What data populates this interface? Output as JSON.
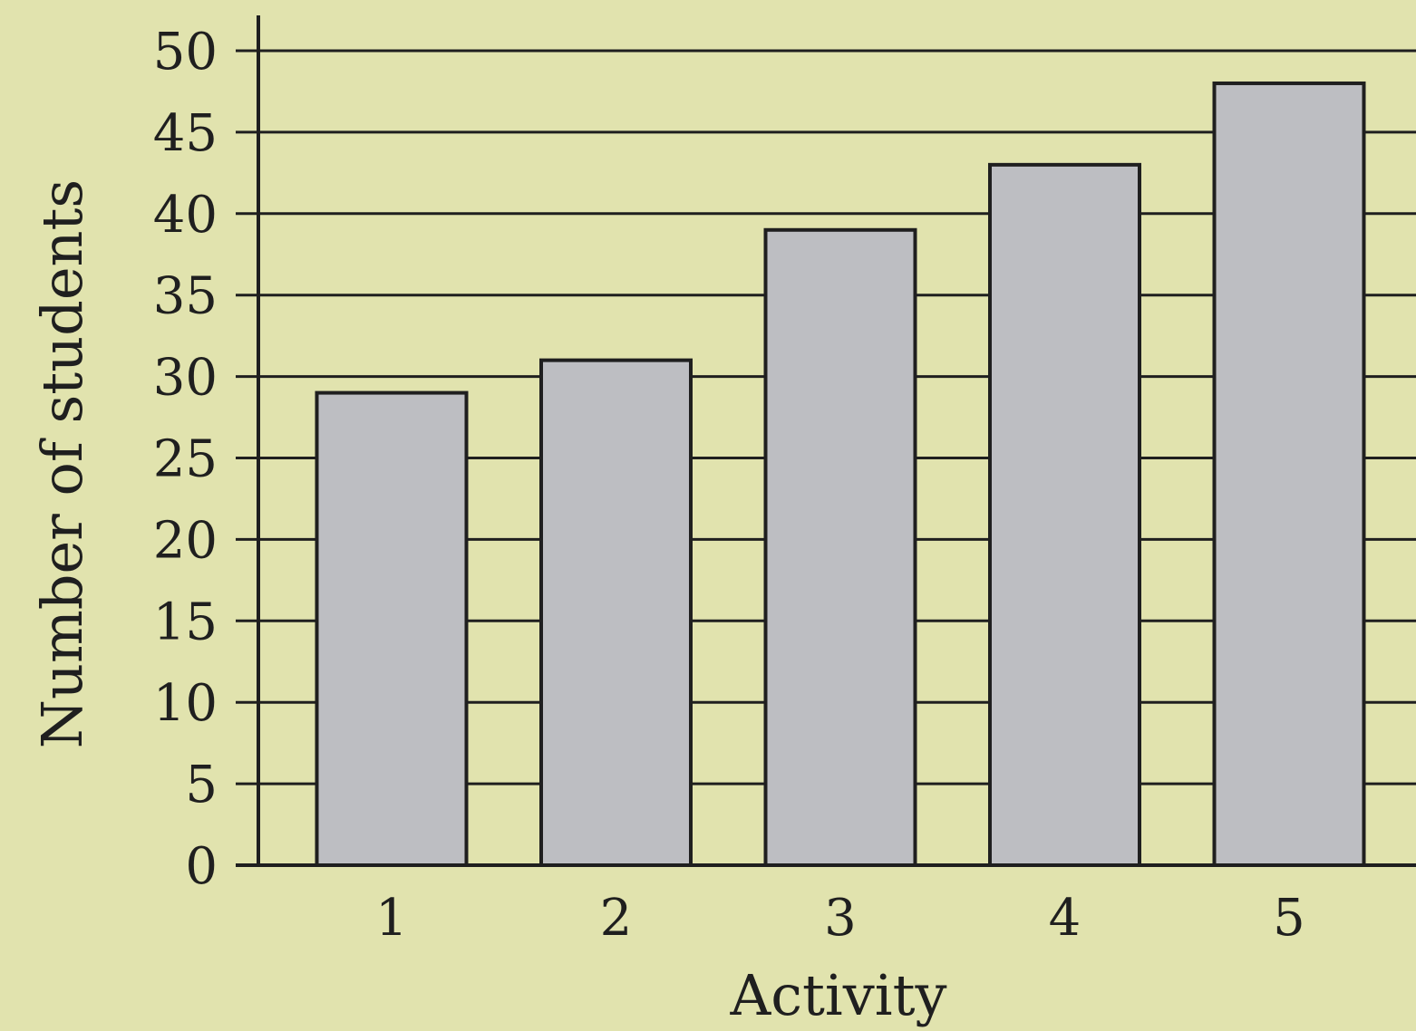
{
  "chart_data": {
    "type": "bar",
    "title": "",
    "xlabel": "Activity",
    "ylabel": "Number of students",
    "categories": [
      "1",
      "2",
      "3",
      "4",
      "5"
    ],
    "values": [
      29,
      31,
      39,
      43,
      48
    ],
    "ylim": [
      0,
      50
    ],
    "yticks": [
      0,
      5,
      10,
      15,
      20,
      25,
      30,
      35,
      40,
      45,
      50
    ],
    "ytick_labels": [
      "0",
      "5",
      "10",
      "15",
      "20",
      "25",
      "30",
      "35",
      "40",
      "45",
      "50"
    ],
    "grid": true,
    "legend": "none",
    "colors": {
      "background": "#e1e3ae",
      "bar_fill": "#bdbec2",
      "bar_stroke": "#1f1f1f",
      "grid": "#1f1f1f",
      "text": "#1f1f1f"
    }
  }
}
